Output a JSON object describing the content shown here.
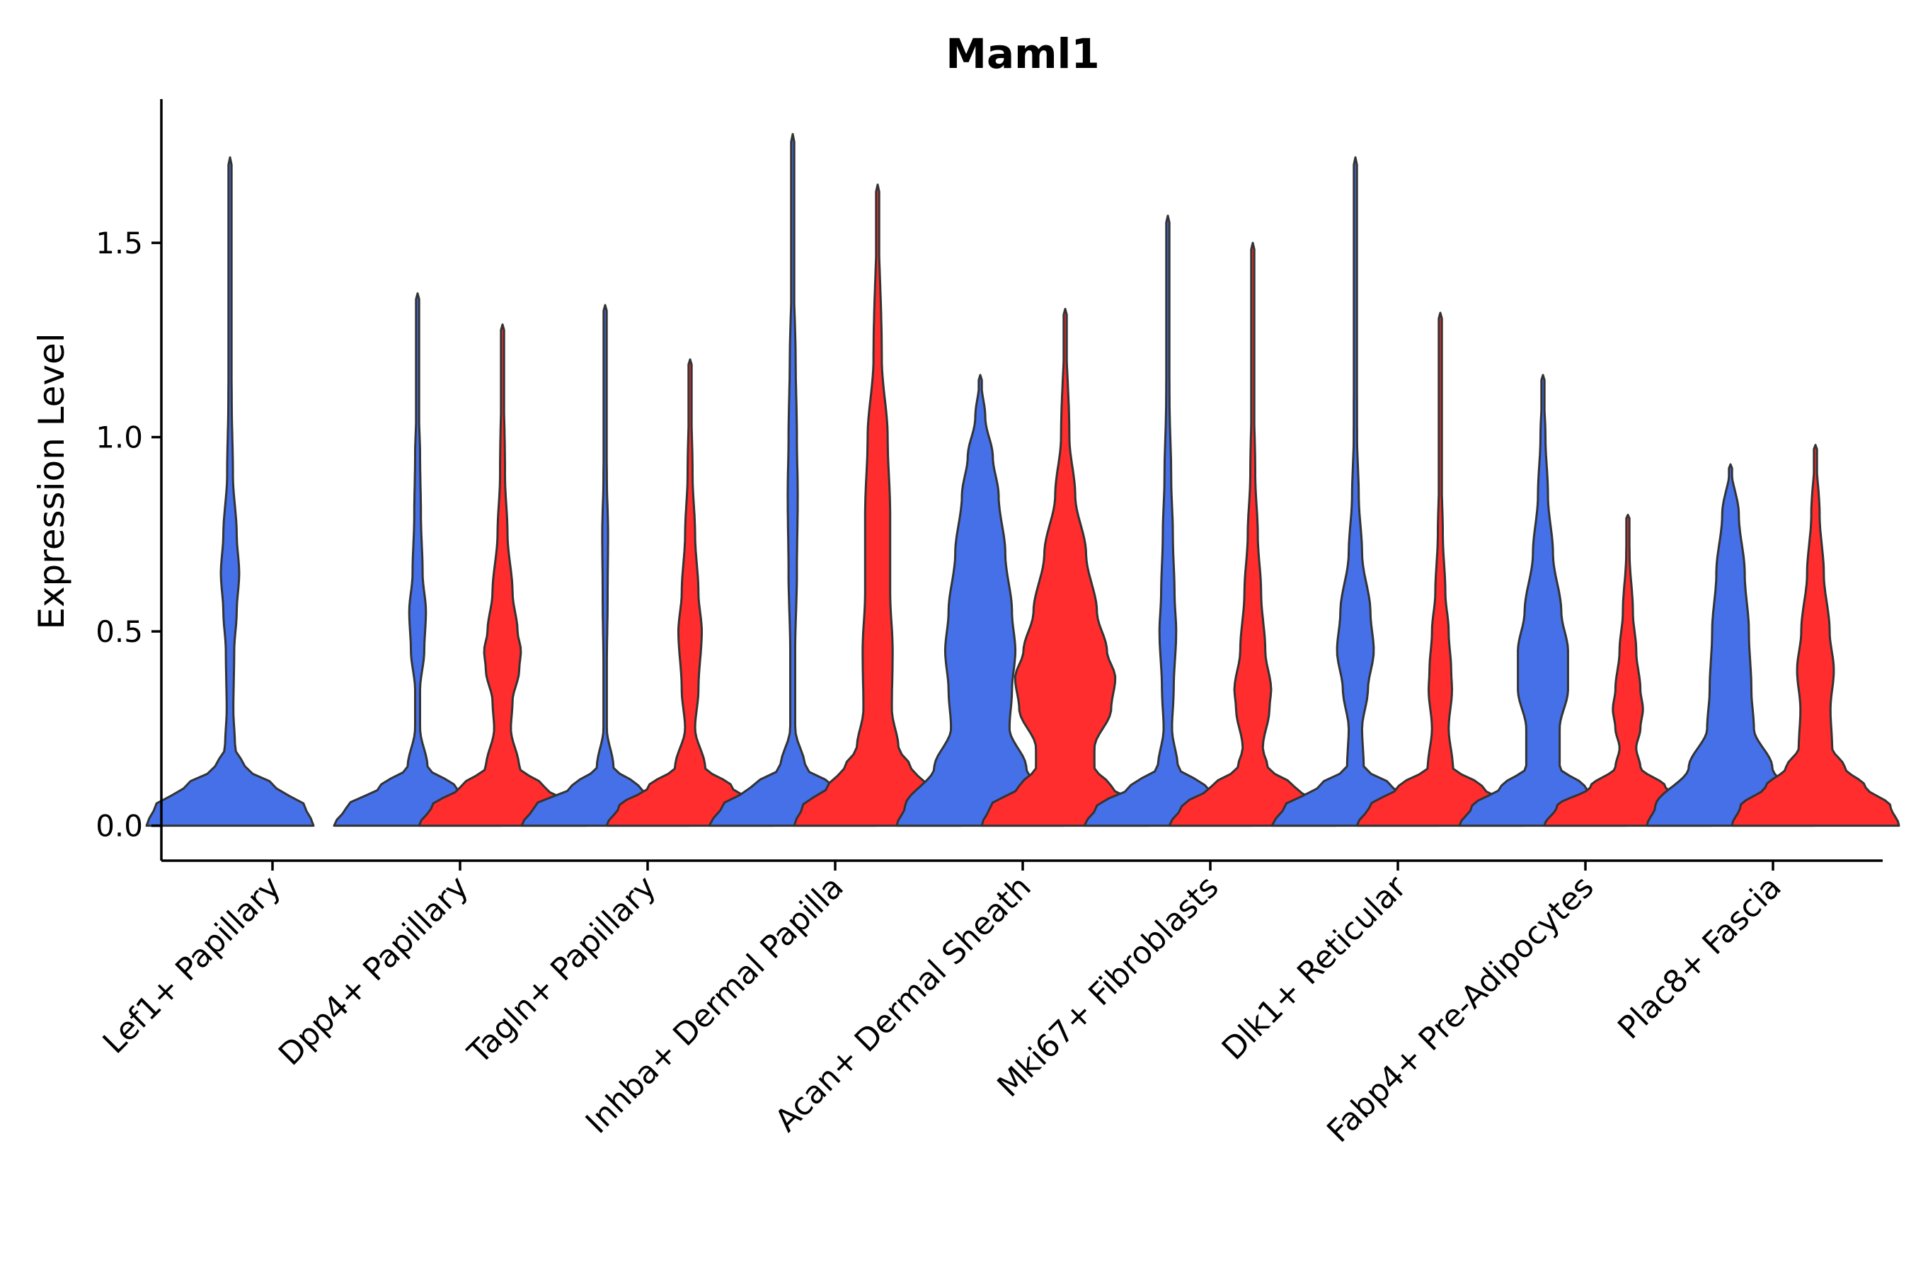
{
  "chart_data": {
    "type": "violin",
    "title": "Maml1",
    "xlabel": "",
    "ylabel": "Expression Level",
    "ylim": [
      -0.09,
      1.87
    ],
    "yticks": [
      0.0,
      0.5,
      1.0,
      1.5
    ],
    "ytick_labels": [
      "0.0",
      "0.5",
      "1.0",
      "1.5"
    ],
    "grid": false,
    "legend": "none",
    "colors": {
      "group1": "#4570E8",
      "group2": "#FF2D2D",
      "outline": "#333333"
    },
    "categories": [
      "Lef1+ Papillary",
      "Dpp4+ Papillary",
      "Tagln+ Papillary",
      "Inhba+ Dermal Papilla",
      "Acan+ Dermal Sheath",
      "Mki67+ Fibroblasts",
      "Dlk1+ Reticular",
      "Fabp4+ Pre-Adipocytes",
      "Plac8+ Fascia"
    ],
    "series": [
      {
        "name": "group1",
        "color": "#4570E8",
        "max_values": [
          1.72,
          1.37,
          1.34,
          1.78,
          1.16,
          1.57,
          1.72,
          1.16,
          0.93
        ],
        "density_profiles": [
          [
            [
              0,
              1.0
            ],
            [
              0.05,
              0.9
            ],
            [
              0.1,
              0.55
            ],
            [
              0.15,
              0.18
            ],
            [
              0.2,
              0.06
            ],
            [
              0.3,
              0.04
            ],
            [
              0.45,
              0.05
            ],
            [
              0.55,
              0.08
            ],
            [
              0.65,
              0.11
            ],
            [
              0.75,
              0.08
            ],
            [
              0.9,
              0.035
            ],
            [
              1.1,
              0.02
            ],
            [
              1.3,
              0.01
            ],
            [
              1.5,
              0.005
            ],
            [
              1.72,
              0
            ]
          ],
          [
            [
              0,
              1.0
            ],
            [
              0.05,
              0.85
            ],
            [
              0.1,
              0.45
            ],
            [
              0.15,
              0.12
            ],
            [
              0.25,
              0.03
            ],
            [
              0.35,
              0.03
            ],
            [
              0.45,
              0.08
            ],
            [
              0.55,
              0.1
            ],
            [
              0.65,
              0.06
            ],
            [
              0.8,
              0.04
            ],
            [
              0.95,
              0.03
            ],
            [
              1.1,
              0.01
            ],
            [
              1.37,
              0
            ]
          ],
          [
            [
              0,
              1.0
            ],
            [
              0.05,
              0.85
            ],
            [
              0.1,
              0.4
            ],
            [
              0.15,
              0.1
            ],
            [
              0.25,
              0.02
            ],
            [
              0.4,
              0.02
            ],
            [
              0.6,
              0.03
            ],
            [
              0.75,
              0.035
            ],
            [
              0.9,
              0.02
            ],
            [
              1.1,
              0.01
            ],
            [
              1.34,
              0
            ]
          ],
          [
            [
              0,
              1.0
            ],
            [
              0.05,
              0.85
            ],
            [
              0.1,
              0.5
            ],
            [
              0.15,
              0.15
            ],
            [
              0.25,
              0.03
            ],
            [
              0.45,
              0.03
            ],
            [
              0.65,
              0.05
            ],
            [
              0.85,
              0.06
            ],
            [
              1.0,
              0.05
            ],
            [
              1.2,
              0.035
            ],
            [
              1.4,
              0.015
            ],
            [
              1.78,
              0
            ]
          ],
          [
            [
              0,
              1.0
            ],
            [
              0.05,
              0.9
            ],
            [
              0.15,
              0.55
            ],
            [
              0.25,
              0.35
            ],
            [
              0.35,
              0.38
            ],
            [
              0.45,
              0.42
            ],
            [
              0.55,
              0.38
            ],
            [
              0.7,
              0.3
            ],
            [
              0.85,
              0.22
            ],
            [
              0.95,
              0.15
            ],
            [
              1.05,
              0.06
            ],
            [
              1.16,
              0
            ]
          ],
          [
            [
              0,
              1.0
            ],
            [
              0.05,
              0.85
            ],
            [
              0.1,
              0.45
            ],
            [
              0.15,
              0.12
            ],
            [
              0.25,
              0.05
            ],
            [
              0.35,
              0.07
            ],
            [
              0.5,
              0.1
            ],
            [
              0.6,
              0.08
            ],
            [
              0.75,
              0.06
            ],
            [
              0.9,
              0.04
            ],
            [
              1.1,
              0.02
            ],
            [
              1.3,
              0.01
            ],
            [
              1.57,
              0
            ]
          ],
          [
            [
              0,
              1.0
            ],
            [
              0.05,
              0.85
            ],
            [
              0.1,
              0.45
            ],
            [
              0.15,
              0.1
            ],
            [
              0.25,
              0.08
            ],
            [
              0.35,
              0.15
            ],
            [
              0.45,
              0.22
            ],
            [
              0.55,
              0.18
            ],
            [
              0.7,
              0.08
            ],
            [
              0.85,
              0.04
            ],
            [
              1.0,
              0.02
            ],
            [
              1.72,
              0
            ]
          ],
          [
            [
              0,
              1.0
            ],
            [
              0.05,
              0.85
            ],
            [
              0.1,
              0.5
            ],
            [
              0.15,
              0.2
            ],
            [
              0.25,
              0.2
            ],
            [
              0.35,
              0.3
            ],
            [
              0.45,
              0.3
            ],
            [
              0.55,
              0.22
            ],
            [
              0.7,
              0.12
            ],
            [
              0.85,
              0.06
            ],
            [
              1.0,
              0.03
            ],
            [
              1.16,
              0
            ]
          ],
          [
            [
              0,
              1.0
            ],
            [
              0.05,
              0.9
            ],
            [
              0.15,
              0.5
            ],
            [
              0.25,
              0.28
            ],
            [
              0.35,
              0.25
            ],
            [
              0.5,
              0.22
            ],
            [
              0.65,
              0.17
            ],
            [
              0.8,
              0.1
            ],
            [
              0.93,
              0
            ]
          ]
        ]
      },
      {
        "name": "group2",
        "color": "#FF2D2D",
        "max_values": [
          null,
          1.29,
          1.2,
          1.65,
          1.33,
          1.5,
          1.32,
          0.8,
          0.98
        ],
        "density_profiles": [
          null,
          [
            [
              0,
              1.0
            ],
            [
              0.05,
              0.85
            ],
            [
              0.1,
              0.5
            ],
            [
              0.15,
              0.2
            ],
            [
              0.25,
              0.1
            ],
            [
              0.32,
              0.12
            ],
            [
              0.4,
              0.2
            ],
            [
              0.45,
              0.22
            ],
            [
              0.5,
              0.18
            ],
            [
              0.6,
              0.12
            ],
            [
              0.75,
              0.06
            ],
            [
              0.9,
              0.03
            ],
            [
              1.29,
              0
            ]
          ],
          [
            [
              0,
              1.0
            ],
            [
              0.05,
              0.85
            ],
            [
              0.1,
              0.5
            ],
            [
              0.15,
              0.18
            ],
            [
              0.25,
              0.06
            ],
            [
              0.35,
              0.1
            ],
            [
              0.5,
              0.14
            ],
            [
              0.6,
              0.1
            ],
            [
              0.75,
              0.06
            ],
            [
              0.9,
              0.03
            ],
            [
              1.2,
              0
            ]
          ],
          [
            [
              0,
              1.0
            ],
            [
              0.05,
              0.9
            ],
            [
              0.1,
              0.6
            ],
            [
              0.15,
              0.4
            ],
            [
              0.2,
              0.25
            ],
            [
              0.3,
              0.17
            ],
            [
              0.45,
              0.18
            ],
            [
              0.6,
              0.15
            ],
            [
              0.8,
              0.15
            ],
            [
              1.0,
              0.12
            ],
            [
              1.2,
              0.05
            ],
            [
              1.65,
              0
            ]
          ],
          [
            [
              0,
              1.0
            ],
            [
              0.05,
              0.9
            ],
            [
              0.1,
              0.55
            ],
            [
              0.15,
              0.35
            ],
            [
              0.2,
              0.35
            ],
            [
              0.3,
              0.55
            ],
            [
              0.38,
              0.6
            ],
            [
              0.45,
              0.5
            ],
            [
              0.55,
              0.38
            ],
            [
              0.7,
              0.25
            ],
            [
              0.85,
              0.12
            ],
            [
              1.0,
              0.05
            ],
            [
              1.33,
              0
            ]
          ],
          [
            [
              0,
              1.0
            ],
            [
              0.05,
              0.85
            ],
            [
              0.1,
              0.5
            ],
            [
              0.15,
              0.18
            ],
            [
              0.2,
              0.12
            ],
            [
              0.3,
              0.2
            ],
            [
              0.35,
              0.22
            ],
            [
              0.45,
              0.15
            ],
            [
              0.6,
              0.1
            ],
            [
              0.75,
              0.06
            ],
            [
              0.9,
              0.03
            ],
            [
              1.1,
              0.015
            ],
            [
              1.5,
              0
            ]
          ],
          [
            [
              0,
              1.0
            ],
            [
              0.05,
              0.85
            ],
            [
              0.1,
              0.5
            ],
            [
              0.15,
              0.15
            ],
            [
              0.25,
              0.1
            ],
            [
              0.35,
              0.14
            ],
            [
              0.4,
              0.13
            ],
            [
              0.5,
              0.1
            ],
            [
              0.6,
              0.06
            ],
            [
              0.75,
              0.03
            ],
            [
              0.9,
              0.015
            ],
            [
              1.32,
              0
            ]
          ],
          [
            [
              0,
              1.0
            ],
            [
              0.05,
              0.85
            ],
            [
              0.1,
              0.45
            ],
            [
              0.15,
              0.15
            ],
            [
              0.2,
              0.1
            ],
            [
              0.25,
              0.15
            ],
            [
              0.3,
              0.18
            ],
            [
              0.35,
              0.15
            ],
            [
              0.45,
              0.1
            ],
            [
              0.55,
              0.06
            ],
            [
              0.7,
              0.02
            ],
            [
              0.8,
              0
            ]
          ],
          [
            [
              0,
              1.0
            ],
            [
              0.05,
              0.9
            ],
            [
              0.1,
              0.6
            ],
            [
              0.15,
              0.35
            ],
            [
              0.2,
              0.2
            ],
            [
              0.3,
              0.18
            ],
            [
              0.4,
              0.22
            ],
            [
              0.5,
              0.17
            ],
            [
              0.65,
              0.1
            ],
            [
              0.8,
              0.05
            ],
            [
              0.98,
              0
            ]
          ]
        ]
      }
    ]
  }
}
